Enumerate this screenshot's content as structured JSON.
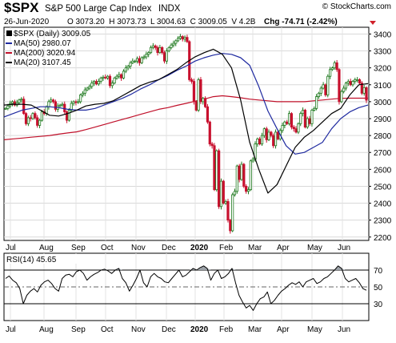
{
  "header": {
    "symbol": "$SPX",
    "name": "S&P 500 Large Cap Index",
    "exchange": "INDX",
    "date": "26-Jun-2020",
    "ohlc": "O 3073.20  H 3073.73  L 3004.63  C 3009.05  V 4.2B",
    "chg": "Chg -74.71 (-2.42%)",
    "watermark": "© StockCharts.com"
  },
  "legend": [
    {
      "label": "$SPX (Daily) 3009.05",
      "color": "#000000"
    },
    {
      "label": "MA(50) 2980.07",
      "color": "#1f2aa0"
    },
    {
      "label": "MA(200) 3020.94",
      "color": "#c0102a"
    },
    {
      "label": "MA(20) 3107.45",
      "color": "#000000"
    }
  ],
  "chart_data": [
    {
      "type": "line",
      "x_labels": [
        "Jul",
        "Aug",
        "Sep",
        "Oct",
        "Nov",
        "Dec",
        "2020",
        "Feb",
        "Mar",
        "Apr",
        "May",
        "Jun"
      ],
      "ylim": [
        2180,
        3440
      ],
      "yticks": [
        2200,
        2300,
        2400,
        2500,
        2600,
        2700,
        2800,
        2900,
        3000,
        3100,
        3200,
        3300,
        3400
      ],
      "grid": true,
      "price_series": {
        "name": "$SPX (Daily)",
        "close": [
          2960,
          2975,
          2990,
          3000,
          2980,
          2995,
          3010,
          3015,
          2930,
          2870,
          2905,
          2900,
          2930,
          2905,
          2860,
          2890,
          2940,
          2930,
          2970,
          3000,
          3010,
          3000,
          2955,
          2975,
          2980,
          2985,
          2940,
          2890,
          2950,
          2990,
          3000,
          2995,
          3000,
          3040,
          3050,
          3070,
          3080,
          3090,
          3110,
          3120,
          3105,
          3120,
          3140,
          3145,
          3140,
          3150,
          3095,
          3110,
          3140,
          3150,
          3160,
          3140,
          3180,
          3200,
          3210,
          3230,
          3240,
          3240,
          3255,
          3230,
          3260,
          3265,
          3280,
          3290,
          3320,
          3330,
          3320,
          3290,
          3320,
          3290,
          3240,
          3300,
          3320,
          3335,
          3345,
          3360,
          3375,
          3385,
          3370,
          3380,
          3355,
          3130,
          3120,
          3000,
          2950,
          3130,
          3000,
          3020,
          2970,
          2880,
          2750,
          2740,
          2480,
          2710,
          2380,
          2530,
          2400,
          2410,
          2300,
          2237,
          2450,
          2470,
          2620,
          2540,
          2630,
          2500,
          2470,
          2480,
          2650,
          2660,
          2750,
          2780,
          2750,
          2800,
          2840,
          2775,
          2820,
          2800,
          2740,
          2820,
          2780,
          2830,
          2860,
          2880,
          2870,
          2930,
          2850,
          2840,
          2820,
          2870,
          2930,
          2950,
          2850,
          2900,
          2870,
          2950,
          2960,
          3030,
          3050,
          3080,
          3100,
          3040,
          3150,
          3190,
          3200,
          3230,
          3190,
          3000,
          3060,
          3080,
          3110,
          3120,
          3100,
          3120,
          3130,
          3130,
          3110,
          3050,
          3083,
          3009
        ]
      },
      "series": [
        {
          "name": "MA(20)",
          "values": [
            2980,
            2985,
            2985,
            2980,
            2950,
            2920,
            2915,
            2930,
            2950,
            2975,
            2985,
            2990,
            3005,
            3035,
            3065,
            3095,
            3115,
            3130,
            3160,
            3190,
            3230,
            3265,
            3290,
            3310,
            3280,
            3200,
            3010,
            2760,
            2600,
            2460,
            2510,
            2620,
            2730,
            2790,
            2830,
            2880,
            2930,
            2960,
            3040,
            3100,
            3107
          ]
        },
        {
          "name": "MA(50)",
          "values": [
            2910,
            2930,
            2950,
            2960,
            2970,
            2970,
            2965,
            2955,
            2950,
            2950,
            2960,
            2980,
            3000,
            3020,
            3045,
            3075,
            3100,
            3130,
            3155,
            3185,
            3210,
            3240,
            3260,
            3275,
            3285,
            3280,
            3260,
            3215,
            3090,
            2945,
            2840,
            2740,
            2690,
            2700,
            2730,
            2760,
            2840,
            2900,
            2940,
            2965,
            2980
          ]
        },
        {
          "name": "MA(200)",
          "values": [
            2775,
            2780,
            2785,
            2790,
            2795,
            2800,
            2808,
            2815,
            2822,
            2835,
            2850,
            2865,
            2880,
            2895,
            2910,
            2925,
            2940,
            2955,
            2965,
            2978,
            2990,
            3003,
            3015,
            3030,
            3035,
            3030,
            3023,
            3015,
            3010,
            3005,
            3000,
            3000,
            3000,
            3000,
            3005,
            3010,
            3015,
            3020,
            3021,
            3021,
            3021
          ]
        }
      ]
    },
    {
      "type": "line",
      "title": "RSI(14) 45.65",
      "x_labels": [
        "Jul",
        "Aug",
        "Sep",
        "Oct",
        "Nov",
        "Dec",
        "2020",
        "Feb",
        "Mar",
        "Apr",
        "May",
        "Jun"
      ],
      "ylim": [
        10,
        90
      ],
      "yticks": [
        30,
        50,
        70
      ],
      "series": [
        {
          "name": "RSI(14)",
          "values": [
            60,
            63,
            58,
            55,
            48,
            30,
            40,
            45,
            48,
            44,
            52,
            56,
            58,
            54,
            48,
            45,
            60,
            64,
            65,
            62,
            68,
            70,
            66,
            58,
            62,
            65,
            67,
            70,
            71,
            69,
            66,
            70,
            72,
            60,
            55,
            45,
            52,
            60,
            70,
            55,
            50,
            62,
            66,
            62,
            60,
            56,
            55,
            60,
            65,
            70,
            62,
            64,
            68,
            72,
            70,
            73,
            75,
            72,
            58,
            66,
            70,
            60,
            62,
            66,
            72,
            55,
            40,
            32,
            25,
            28,
            22,
            30,
            36,
            38,
            44,
            30,
            34,
            40,
            45,
            48,
            52,
            55,
            53,
            56,
            50,
            56,
            58,
            60,
            54,
            56,
            60,
            62,
            66,
            70,
            75,
            72,
            60,
            56,
            58,
            60,
            55,
            48,
            46
          ]
        }
      ]
    }
  ]
}
